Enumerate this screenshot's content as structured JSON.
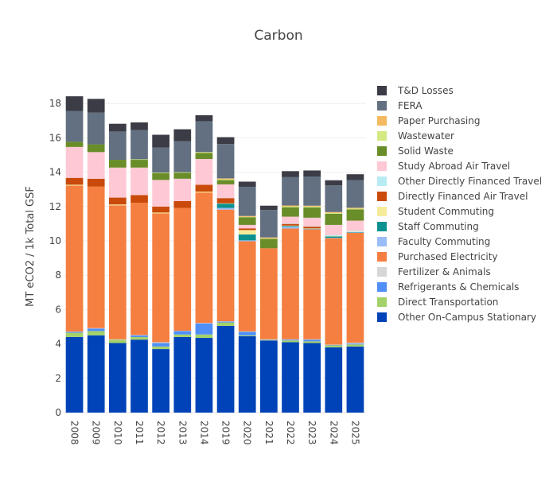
{
  "chart_data": {
    "type": "bar",
    "stacked": true,
    "title": "Carbon",
    "xlabel": "",
    "ylabel": "MT eCO2 / 1k Total GSF",
    "ylim": [
      0,
      19
    ],
    "yticks": [
      0,
      2,
      4,
      6,
      8,
      10,
      12,
      14,
      16,
      18
    ],
    "grid": true,
    "legend_position": "right",
    "categories": [
      "2008",
      "2009",
      "2010",
      "2011",
      "2012",
      "2013",
      "2014",
      "2019",
      "2020",
      "2021",
      "2022",
      "2023",
      "2024",
      "2025"
    ],
    "series": [
      {
        "name": "Other On-Campus Stationary",
        "color": "#0043b8",
        "values": [
          4.4,
          4.5,
          4.05,
          4.25,
          3.7,
          4.4,
          4.35,
          5.05,
          4.45,
          4.2,
          4.1,
          4.05,
          3.8,
          3.85
        ]
      },
      {
        "name": "Direct Transportation",
        "color": "#a3d16a",
        "values": [
          0.25,
          0.25,
          0.2,
          0.15,
          0.15,
          0.15,
          0.2,
          0.2,
          0.05,
          0.03,
          0.1,
          0.1,
          0.12,
          0.12
        ]
      },
      {
        "name": "Refrigerants & Chemicals",
        "color": "#4f8ff7",
        "values": [
          0.05,
          0.15,
          0.0,
          0.1,
          0.2,
          0.2,
          0.65,
          0.05,
          0.2,
          0.02,
          0.05,
          0.1,
          0.02,
          0.05
        ]
      },
      {
        "name": "Fertilizer & Animals",
        "color": "#d6d6d6",
        "values": [
          0.02,
          0.02,
          0.02,
          0.02,
          0.05,
          0.02,
          0.02,
          0.02,
          0.03,
          0.02,
          0.02,
          0.02,
          0.02,
          0.05
        ]
      },
      {
        "name": "Purchased Electricity",
        "color": "#f57f41",
        "values": [
          8.5,
          8.25,
          7.8,
          7.7,
          7.5,
          7.15,
          7.6,
          6.5,
          5.25,
          5.3,
          6.45,
          6.4,
          6.2,
          6.4
        ]
      },
      {
        "name": "Faculty Commuting",
        "color": "#9abcf7",
        "values": [
          0.0,
          0.0,
          0.0,
          0.0,
          0.0,
          0.0,
          0.0,
          0.1,
          0.05,
          0.0,
          0.1,
          0.02,
          0.02,
          0.02
        ]
      },
      {
        "name": "Staff Commuting",
        "color": "#0c9190",
        "values": [
          0.0,
          0.0,
          0.0,
          0.0,
          0.0,
          0.0,
          0.0,
          0.25,
          0.35,
          0.0,
          0.05,
          0.02,
          0.08,
          0.02
        ]
      },
      {
        "name": "Student Commuting",
        "color": "#f6eb9b",
        "values": [
          0.05,
          0.0,
          0.05,
          0.0,
          0.05,
          0.0,
          0.05,
          0.02,
          0.25,
          0.0,
          0.02,
          0.02,
          0.02,
          0.02
        ]
      },
      {
        "name": "Directly Financed Air Travel",
        "color": "#c94a0a",
        "values": [
          0.4,
          0.45,
          0.4,
          0.45,
          0.35,
          0.4,
          0.4,
          0.3,
          0.1,
          0.0,
          0.1,
          0.1,
          0.0,
          0.0
        ]
      },
      {
        "name": "Other Directly Financed Travel",
        "color": "#b9ebf4",
        "values": [
          0.0,
          0.0,
          0.0,
          0.0,
          0.0,
          0.0,
          0.0,
          0.0,
          0.0,
          0.0,
          0.02,
          0.02,
          0.05,
          0.05
        ]
      },
      {
        "name": "Study Abroad Air Travel",
        "color": "#fec8d4",
        "values": [
          1.8,
          1.55,
          1.75,
          1.6,
          1.55,
          1.3,
          1.5,
          0.8,
          0.2,
          0.0,
          0.4,
          0.5,
          0.6,
          0.6
        ]
      },
      {
        "name": "Solid Waste",
        "color": "#698d28",
        "values": [
          0.3,
          0.45,
          0.45,
          0.45,
          0.4,
          0.35,
          0.35,
          0.25,
          0.45,
          0.55,
          0.55,
          0.6,
          0.65,
          0.65
        ]
      },
      {
        "name": "Wastewater",
        "color": "#d3e982",
        "values": [
          0.0,
          0.0,
          0.0,
          0.03,
          0.03,
          0.03,
          0.05,
          0.05,
          0.02,
          0.03,
          0.05,
          0.05,
          0.05,
          0.05
        ]
      },
      {
        "name": "Paper Purchasing",
        "color": "#f5b961",
        "values": [
          0.0,
          0.0,
          0.0,
          0.0,
          0.0,
          0.0,
          0.0,
          0.05,
          0.05,
          0.05,
          0.05,
          0.05,
          0.05,
          0.05
        ]
      },
      {
        "name": "FERA",
        "color": "#627081",
        "values": [
          1.8,
          1.85,
          1.65,
          1.7,
          1.45,
          1.8,
          1.8,
          2.0,
          1.7,
          1.6,
          1.65,
          1.7,
          1.55,
          1.6
        ]
      },
      {
        "name": "T&D Losses",
        "color": "#3b3c45",
        "values": [
          0.85,
          0.8,
          0.45,
          0.45,
          0.75,
          0.7,
          0.35,
          0.4,
          0.3,
          0.25,
          0.35,
          0.35,
          0.3,
          0.35
        ]
      }
    ],
    "legend_order": [
      "T&D Losses",
      "FERA",
      "Paper Purchasing",
      "Wastewater",
      "Solid Waste",
      "Study Abroad Air Travel",
      "Other Directly Financed Travel",
      "Directly Financed Air Travel",
      "Student Commuting",
      "Staff Commuting",
      "Faculty Commuting",
      "Purchased Electricity",
      "Fertilizer & Animals",
      "Refrigerants & Chemicals",
      "Direct Transportation",
      "Other On-Campus Stationary"
    ]
  }
}
